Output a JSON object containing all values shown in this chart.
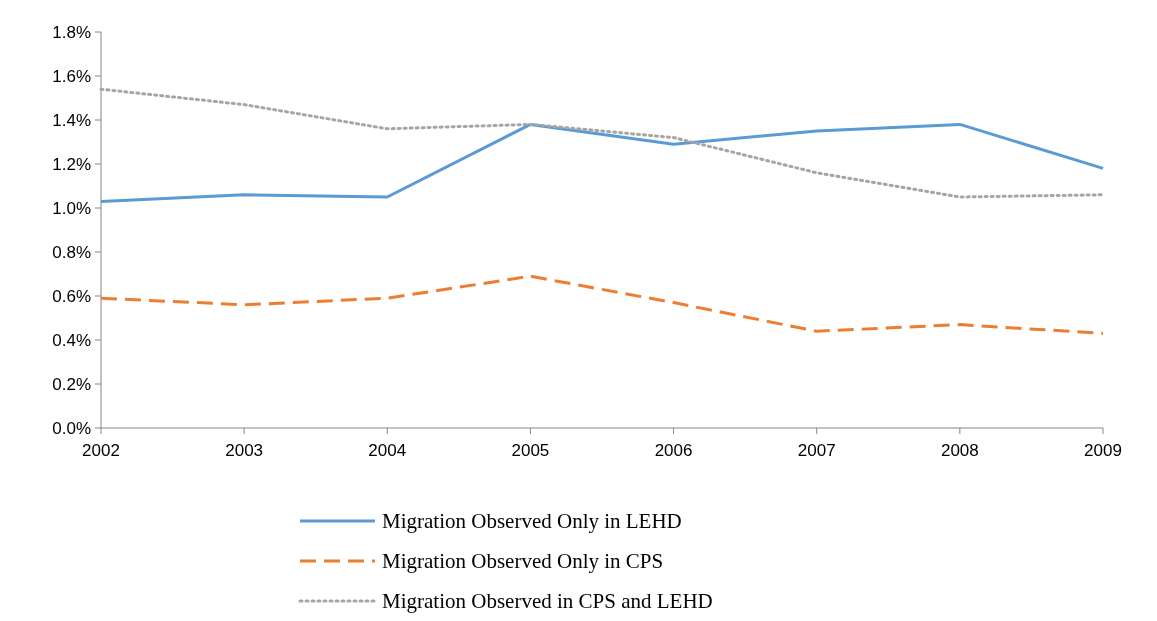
{
  "chart_data": {
    "type": "line",
    "categories": [
      "2002",
      "2003",
      "2004",
      "2005",
      "2006",
      "2007",
      "2008",
      "2009"
    ],
    "series": [
      {
        "name": "Migration Observed Only in LEHD",
        "color": "#5b9bd5",
        "line_style": "solid",
        "values": [
          1.03,
          1.06,
          1.05,
          1.38,
          1.29,
          1.35,
          1.38,
          1.18
        ]
      },
      {
        "name": "Migration Observed Only in CPS",
        "color": "#ed7d31",
        "line_style": "dashed",
        "values": [
          0.59,
          0.56,
          0.59,
          0.69,
          0.57,
          0.44,
          0.47,
          0.43
        ]
      },
      {
        "name": "Migration Observed in CPS and LEHD",
        "color": "#a5a5a5",
        "line_style": "dotted",
        "values": [
          1.54,
          1.47,
          1.36,
          1.38,
          1.32,
          1.16,
          1.05,
          1.06
        ]
      }
    ],
    "ylim": [
      0,
      1.8
    ],
    "yticks": [
      {
        "value": 0,
        "label": "0.0%"
      },
      {
        "value": 0.2,
        "label": "0.2%"
      },
      {
        "value": 0.4,
        "label": "0.4%"
      },
      {
        "value": 0.6,
        "label": "0.6%"
      },
      {
        "value": 0.8,
        "label": "0.8%"
      },
      {
        "value": 1.0,
        "label": "1.0%"
      },
      {
        "value": 1.2,
        "label": "1.2%"
      },
      {
        "value": 1.4,
        "label": "1.4%"
      },
      {
        "value": 1.6,
        "label": "1.6%"
      },
      {
        "value": 1.8,
        "label": "1.8%"
      }
    ],
    "grid": false,
    "legend": "bottom",
    "marker": "none"
  }
}
